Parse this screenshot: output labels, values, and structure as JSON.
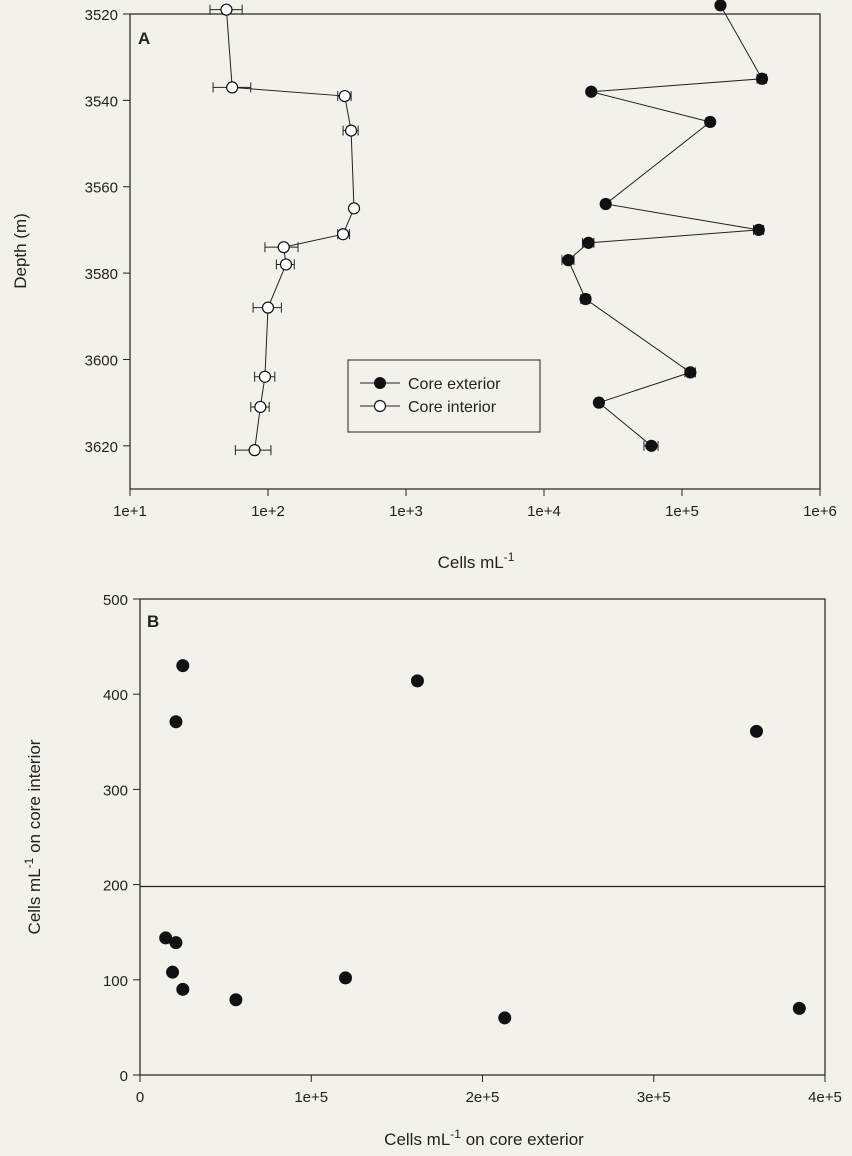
{
  "chart_data": [
    {
      "panel": "A",
      "type": "line",
      "xlabel": "Cells mL",
      "xlabel_sup": "-1",
      "ylabel": "Depth (m)",
      "xscale": "log",
      "xlim": [
        10,
        1000000
      ],
      "ylim": [
        3520,
        3630
      ],
      "y_inverted": true,
      "xticks": [
        10,
        100,
        1000,
        10000,
        100000,
        1000000
      ],
      "xtick_labels": [
        "1e+1",
        "1e+2",
        "1e+3",
        "1e+4",
        "1e+5",
        "1e+6"
      ],
      "yticks": [
        3520,
        3540,
        3560,
        3580,
        3600,
        3620
      ],
      "ytick_labels": [
        "3520",
        "3540",
        "3560",
        "3580",
        "3600",
        "3620"
      ],
      "legend_position": "lower-center",
      "series": [
        {
          "name": "Core exterior",
          "marker": "filled-circle",
          "points": [
            {
              "x": 190000,
              "y": 3518,
              "err": [
                180000,
                200000
              ]
            },
            {
              "x": 380000,
              "y": 3535,
              "err": [
                350000,
                410000
              ]
            },
            {
              "x": 22000,
              "y": 3538
            },
            {
              "x": 160000,
              "y": 3545,
              "err": [
                150000,
                170000
              ]
            },
            {
              "x": 28000,
              "y": 3564
            },
            {
              "x": 360000,
              "y": 3570,
              "err": [
                330000,
                390000
              ]
            },
            {
              "x": 21000,
              "y": 3573,
              "err": [
                19000,
                23000
              ]
            },
            {
              "x": 15000,
              "y": 3577,
              "err": [
                13500,
                16500
              ]
            },
            {
              "x": 20000,
              "y": 3586,
              "err": [
                18500,
                21500
              ]
            },
            {
              "x": 115000,
              "y": 3603,
              "err": [
                105000,
                125000
              ]
            },
            {
              "x": 25000,
              "y": 3610,
              "err": [
                23500,
                26500
              ]
            },
            {
              "x": 60000,
              "y": 3620,
              "err": [
                53000,
                67000
              ]
            }
          ]
        },
        {
          "name": "Core interior",
          "marker": "open-circle",
          "points": [
            {
              "x": 50,
              "y": 3519,
              "err": [
                38,
                65
              ]
            },
            {
              "x": 55,
              "y": 3537,
              "err": [
                40,
                75
              ]
            },
            {
              "x": 360,
              "y": 3539,
              "err": [
                320,
                400
              ]
            },
            {
              "x": 400,
              "y": 3547,
              "err": [
                350,
                450
              ]
            },
            {
              "x": 420,
              "y": 3565
            },
            {
              "x": 350,
              "y": 3571,
              "err": [
                320,
                390
              ]
            },
            {
              "x": 130,
              "y": 3574,
              "err": [
                95,
                165
              ]
            },
            {
              "x": 135,
              "y": 3578,
              "err": [
                115,
                155
              ]
            },
            {
              "x": 100,
              "y": 3588,
              "err": [
                78,
                125
              ]
            },
            {
              "x": 95,
              "y": 3604,
              "err": [
                80,
                112
              ]
            },
            {
              "x": 88,
              "y": 3611,
              "err": [
                75,
                102
              ]
            },
            {
              "x": 80,
              "y": 3621,
              "err": [
                58,
                105
              ]
            }
          ]
        }
      ]
    },
    {
      "panel": "B",
      "type": "scatter",
      "xlabel": "Cells mL",
      "xlabel_sup": "-1",
      "xlabel_suffix": " on core exterior",
      "ylabel": "Cells mL",
      "ylabel_sup": "-1",
      "ylabel_suffix": " on core interior",
      "xlim": [
        0,
        400000
      ],
      "ylim": [
        0,
        500
      ],
      "xticks": [
        0,
        100000,
        200000,
        300000,
        400000
      ],
      "xtick_labels": [
        "0",
        "1e+5",
        "2e+5",
        "3e+5",
        "4e+5"
      ],
      "yticks": [
        0,
        100,
        200,
        300,
        400,
        500
      ],
      "ytick_labels": [
        "0",
        "100",
        "200",
        "300",
        "400",
        "500"
      ],
      "reference_line_y": 198,
      "points": [
        {
          "x": 25000,
          "y": 430
        },
        {
          "x": 162000,
          "y": 414
        },
        {
          "x": 21000,
          "y": 371
        },
        {
          "x": 360000,
          "y": 361
        },
        {
          "x": 15000,
          "y": 144
        },
        {
          "x": 21000,
          "y": 139
        },
        {
          "x": 19000,
          "y": 108
        },
        {
          "x": 25000,
          "y": 90
        },
        {
          "x": 56000,
          "y": 79
        },
        {
          "x": 120000,
          "y": 102
        },
        {
          "x": 213000,
          "y": 60
        },
        {
          "x": 385000,
          "y": 70
        }
      ]
    }
  ]
}
